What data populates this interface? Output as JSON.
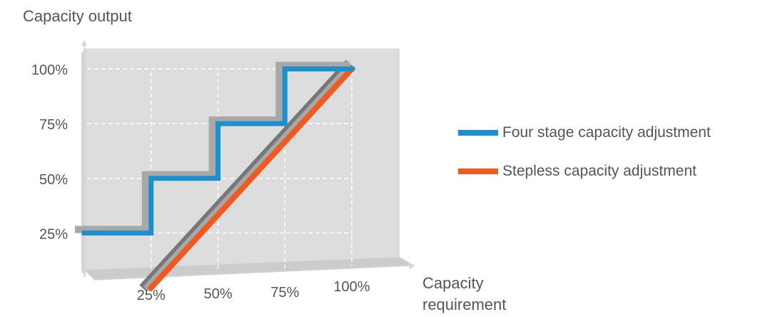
{
  "chart_data": {
    "type": "line",
    "title": "",
    "ylabel": "Capacity output",
    "xlabel": [
      "Capacity",
      "requirement"
    ],
    "x_ticks": [
      "25%",
      "50%",
      "75%",
      "100%"
    ],
    "y_ticks": [
      "25%",
      "50%",
      "75%",
      "100%"
    ],
    "xlim": [
      0,
      100
    ],
    "ylim": [
      0,
      100
    ],
    "grid": "dashed",
    "legend_position": "right",
    "series": [
      {
        "name": "Four stage capacity adjustment",
        "color": "#1f8fcc",
        "x": [
          0,
          25,
          25,
          50,
          50,
          75,
          75,
          100
        ],
        "y": [
          25,
          25,
          50,
          50,
          75,
          75,
          100,
          100
        ]
      },
      {
        "name": "Stepless capacity adjustment",
        "color": "#f05a1e",
        "x": [
          25,
          100
        ],
        "y": [
          0,
          100
        ]
      }
    ]
  },
  "colors": {
    "back_wall": "#dddddd",
    "floor": "#cccccc",
    "shadow": "#a8a8a8",
    "dark_shadow": "#777777",
    "axis": "#d5d5d5",
    "text": "#555555"
  }
}
